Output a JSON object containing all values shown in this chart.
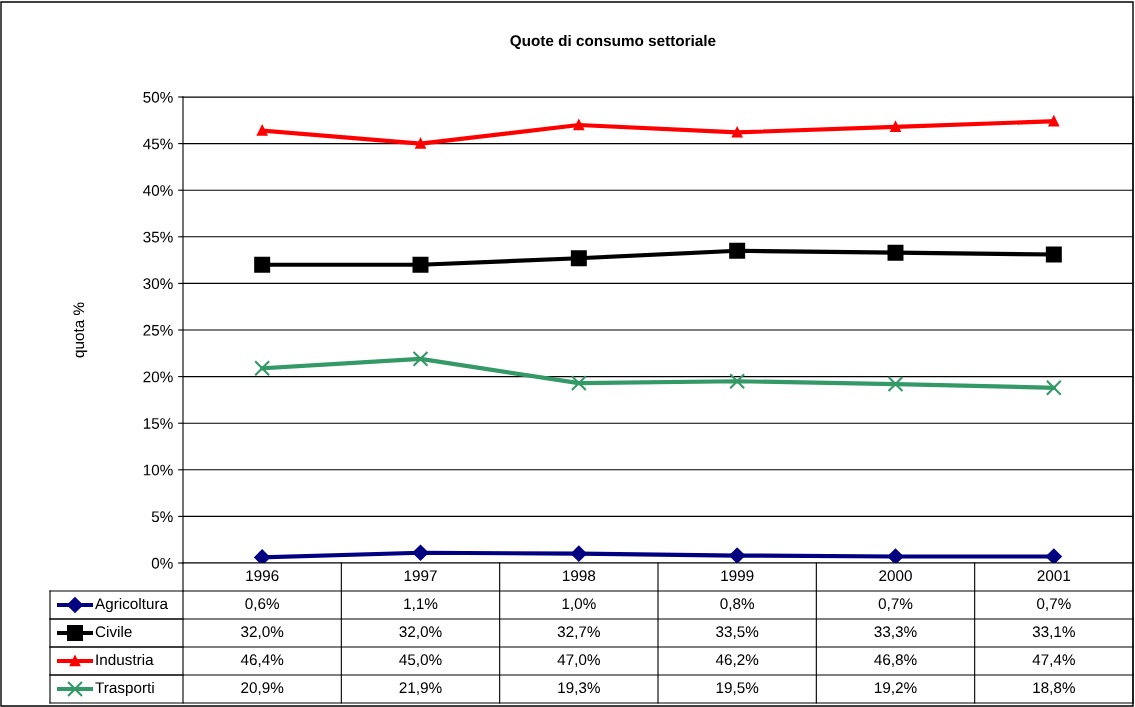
{
  "chart_data": {
    "type": "line",
    "title": "Quote di consumo settoriale",
    "ylabel": "quota %",
    "categories": [
      "1996",
      "1997",
      "1998",
      "1999",
      "2000",
      "2001"
    ],
    "series": [
      {
        "name": "Agricoltura",
        "color": "#000080",
        "marker": "diamond",
        "values": [
          0.6,
          1.1,
          1.0,
          0.8,
          0.7,
          0.7
        ],
        "value_labels": [
          "0,6%",
          "1,1%",
          "1,0%",
          "0,8%",
          "0,7%",
          "0,7%"
        ]
      },
      {
        "name": "Civile",
        "color": "#000000",
        "marker": "square",
        "values": [
          32.0,
          32.0,
          32.7,
          33.5,
          33.3,
          33.1
        ],
        "value_labels": [
          "32,0%",
          "32,0%",
          "32,7%",
          "33,5%",
          "33,3%",
          "33,1%"
        ]
      },
      {
        "name": "Industria",
        "color": "#ff0000",
        "marker": "triangle",
        "values": [
          46.4,
          45.0,
          47.0,
          46.2,
          46.8,
          47.4
        ],
        "value_labels": [
          "46,4%",
          "45,0%",
          "47,0%",
          "46,2%",
          "46,8%",
          "47,4%"
        ]
      },
      {
        "name": "Trasporti",
        "color": "#339966",
        "marker": "cross",
        "values": [
          20.9,
          21.9,
          19.3,
          19.5,
          19.2,
          18.8
        ],
        "value_labels": [
          "20,9%",
          "21,9%",
          "19,3%",
          "19,5%",
          "19,2%",
          "18,8%"
        ]
      }
    ],
    "ylim": [
      0,
      50
    ],
    "yticks": [
      {
        "value": 0,
        "label": "0%"
      },
      {
        "value": 5,
        "label": "5%"
      },
      {
        "value": 10,
        "label": "10%"
      },
      {
        "value": 15,
        "label": "15%"
      },
      {
        "value": 20,
        "label": "20%"
      },
      {
        "value": 25,
        "label": "25%"
      },
      {
        "value": 30,
        "label": "30%"
      },
      {
        "value": 35,
        "label": "35%"
      },
      {
        "value": 40,
        "label": "40%"
      },
      {
        "value": 45,
        "label": "45%"
      },
      {
        "value": 50,
        "label": "50%"
      }
    ],
    "grid": "y",
    "legend": "bottom left"
  }
}
